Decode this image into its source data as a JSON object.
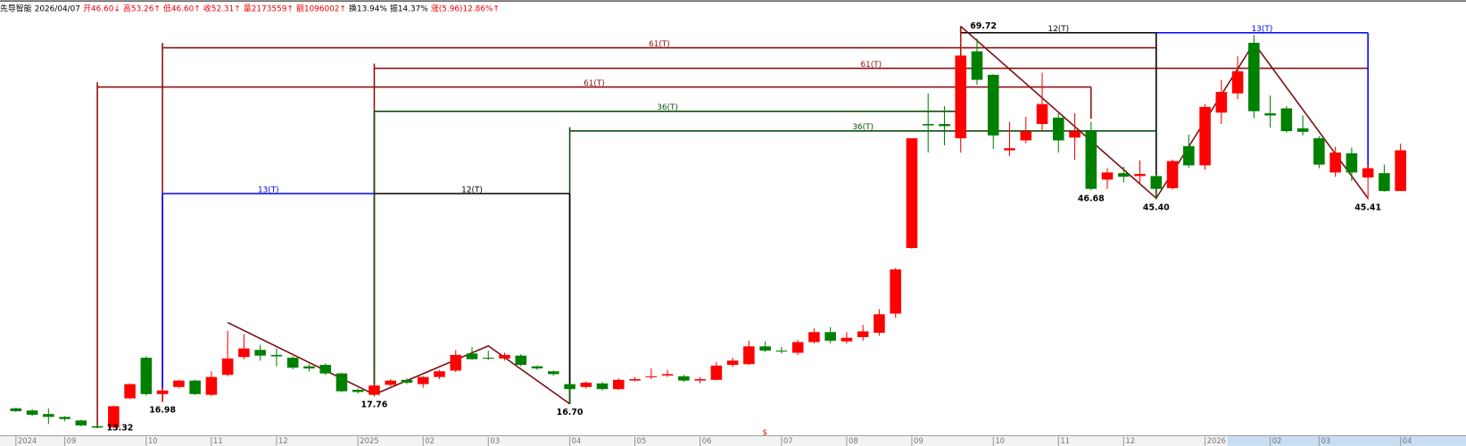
{
  "chart_data": {
    "type": "candlestick",
    "header": [
      "先导智能",
      "2026/04/07",
      "开46.60↓",
      "高53.26↑",
      "低46.60↑",
      "收52.31↑",
      "量2173559↑",
      "额1096002↑",
      "换13.94%",
      "振14.37%",
      "涨(5.96)12.86%↑"
    ],
    "categories": [
      "2024",
      null,
      null,
      "09",
      null,
      null,
      null,
      null,
      "10",
      null,
      null,
      null,
      "11",
      null,
      null,
      null,
      "12",
      null,
      null,
      null,
      null,
      "2025",
      null,
      null,
      null,
      "02",
      null,
      null,
      null,
      "03",
      null,
      null,
      null,
      null,
      "04",
      null,
      null,
      null,
      "05",
      null,
      null,
      null,
      "06",
      null,
      null,
      null,
      null,
      "07",
      null,
      null,
      null,
      "08",
      null,
      null,
      null,
      "09",
      null,
      null,
      null,
      null,
      "10",
      null,
      null,
      null,
      "11",
      null,
      null,
      null,
      "12",
      null,
      null,
      null,
      null,
      "2026",
      null,
      null,
      null,
      "02",
      null,
      null,
      "03",
      null,
      null,
      null,
      null,
      "04"
    ],
    "open": [
      16.1,
      15.8,
      15.3,
      14.9,
      14.4,
      13.6,
      13.4,
      17.5,
      23.2,
      18.1,
      19.1,
      20.0,
      18.0,
      20.8,
      23.3,
      24.3,
      23.6,
      23.2,
      22.0,
      22.2,
      21.0,
      18.7,
      18.0,
      19.4,
      20.1,
      19.5,
      20.5,
      21.4,
      23.8,
      23.2,
      23.1,
      23.5,
      22.0,
      21.3,
      19.5,
      19.1,
      19.6,
      18.8,
      20.0,
      20.5,
      20.7,
      20.6,
      20.0,
      20.1,
      22.2,
      22.3,
      24.8,
      24.2,
      23.9,
      25.4,
      26.8,
      25.5,
      26.1,
      26.7,
      29.4,
      38.6,
      56.0,
      56.0,
      54.0,
      66.2,
      62.9,
      52.3,
      53.7,
      56.0,
      56.9,
      54.1,
      55.0,
      48.2,
      49.1,
      48.7,
      48.7,
      47.0,
      52.9,
      50.2,
      57.6,
      60.3,
      67.4,
      57.5,
      58.2,
      55.4,
      54.0,
      49.2,
      51.9,
      48.5,
      49.1,
      46.6
    ],
    "high": [
      16.2,
      16.0,
      16.1,
      15.0,
      14.5,
      13.7,
      16.5,
      19.6,
      23.4,
      19.0,
      20.1,
      20.1,
      21.3,
      27.0,
      26.5,
      25.0,
      24.5,
      23.4,
      22.3,
      22.4,
      21.1,
      18.9,
      19.5,
      20.2,
      20.3,
      20.6,
      21.5,
      24.3,
      24.7,
      24.2,
      23.9,
      23.7,
      22.1,
      21.4,
      19.6,
      19.9,
      19.8,
      20.3,
      20.5,
      21.7,
      21.5,
      20.8,
      20.5,
      22.6,
      23.2,
      25.6,
      25.5,
      24.7,
      25.7,
      27.3,
      27.5,
      26.8,
      27.8,
      30.0,
      35.8,
      54.0,
      60.3,
      58.5,
      69.72,
      68.0,
      63.0,
      56.3,
      57.0,
      63.2,
      57.5,
      57.5,
      56.3,
      49.8,
      50.0,
      50.9,
      48.9,
      51.0,
      54.5,
      58.8,
      62.2,
      65.5,
      68.5,
      60.0,
      58.5,
      57.2,
      54.3,
      52.8,
      52.7,
      50.3,
      50.3,
      53.26
    ],
    "low": [
      15.6,
      15.0,
      13.9,
      14.3,
      13.6,
      13.32,
      13.4,
      17.4,
      17.9,
      16.98,
      18.9,
      18.0,
      17.8,
      20.6,
      23.0,
      22.8,
      22.0,
      21.6,
      21.3,
      20.8,
      18.4,
      18.2,
      17.76,
      19.2,
      19.5,
      19.0,
      20.2,
      21.2,
      22.9,
      22.9,
      22.8,
      22.0,
      21.5,
      20.7,
      16.7,
      18.9,
      18.6,
      18.7,
      19.9,
      20.2,
      20.5,
      19.8,
      19.6,
      20.0,
      21.9,
      22.2,
      24.0,
      23.8,
      23.6,
      25.2,
      25.2,
      25.2,
      25.6,
      26.3,
      28.8,
      38.5,
      52.0,
      53.0,
      52.0,
      61.5,
      52.5,
      51.5,
      53.3,
      55.0,
      52.0,
      51.0,
      46.68,
      46.9,
      47.8,
      47.5,
      45.4,
      46.8,
      49.9,
      49.6,
      56.0,
      59.5,
      56.8,
      55.5,
      54.8,
      54.4,
      49.8,
      48.6,
      48.0,
      45.41,
      46.5,
      46.6
    ],
    "close": [
      15.7,
      15.2,
      14.9,
      14.6,
      13.7,
      13.4,
      16.4,
      19.5,
      18.1,
      18.6,
      20.0,
      18.1,
      20.5,
      23.1,
      24.5,
      23.5,
      23.4,
      21.8,
      21.7,
      21.0,
      18.5,
      18.4,
      19.3,
      20.0,
      19.7,
      20.5,
      21.3,
      23.6,
      23.0,
      23.1,
      23.6,
      22.2,
      21.7,
      20.9,
      18.8,
      19.7,
      18.8,
      20.1,
      20.2,
      20.6,
      20.9,
      20.0,
      20.2,
      22.1,
      22.8,
      24.8,
      24.2,
      24.1,
      25.4,
      26.8,
      25.6,
      26.0,
      26.9,
      29.3,
      35.6,
      54.0,
      55.8,
      55.7,
      65.6,
      62.2,
      54.4,
      52.6,
      55.0,
      58.8,
      53.7,
      55.0,
      46.9,
      49.2,
      48.6,
      49.0,
      46.9,
      50.8,
      50.2,
      58.4,
      60.5,
      63.4,
      57.8,
      57.2,
      55.0,
      54.9,
      50.3,
      52.0,
      49.2,
      49.8,
      46.6,
      52.31
    ],
    "low_labels": [
      null,
      null,
      null,
      null,
      null,
      "13.32",
      null,
      null,
      null,
      "16.98",
      null,
      null,
      null,
      null,
      null,
      null,
      null,
      null,
      null,
      null,
      null,
      null,
      "17.76",
      null,
      null,
      null,
      null,
      null,
      null,
      null,
      null,
      null,
      null,
      null,
      "16.70",
      null,
      null,
      null,
      null,
      null,
      null,
      null,
      null,
      null,
      null,
      null,
      null,
      null,
      null,
      null,
      null,
      null,
      null,
      null,
      null,
      null,
      null,
      null,
      null,
      null,
      null,
      null,
      null,
      null,
      null,
      null,
      "46.68",
      null,
      null,
      null,
      "45.40",
      null,
      null,
      null,
      null,
      null,
      null,
      null,
      null,
      null,
      null,
      null,
      null,
      "45.41",
      null,
      null
    ],
    "high_labels": [
      null,
      null,
      null,
      null,
      null,
      null,
      null,
      null,
      null,
      null,
      null,
      null,
      null,
      null,
      null,
      null,
      null,
      null,
      null,
      null,
      null,
      null,
      null,
      null,
      null,
      null,
      null,
      null,
      null,
      null,
      null,
      null,
      null,
      null,
      null,
      null,
      null,
      null,
      null,
      null,
      null,
      null,
      null,
      null,
      null,
      null,
      null,
      null,
      null,
      null,
      null,
      null,
      null,
      null,
      null,
      null,
      null,
      null,
      "69.72",
      null,
      null,
      null,
      null,
      null,
      null,
      null,
      null,
      null,
      null,
      null,
      null,
      null,
      null,
      null,
      null,
      null,
      null,
      null,
      null,
      null,
      null,
      null,
      null,
      null,
      null,
      null
    ],
    "annotations": [
      "61(T)",
      "61(T)",
      "61(T)",
      "36(T)",
      "36(T)",
      "13(T)",
      "12(T)",
      "12(T)",
      "13(T)"
    ],
    "marker": "$",
    "up_color": "#ff0000",
    "down_color": "#008000"
  }
}
